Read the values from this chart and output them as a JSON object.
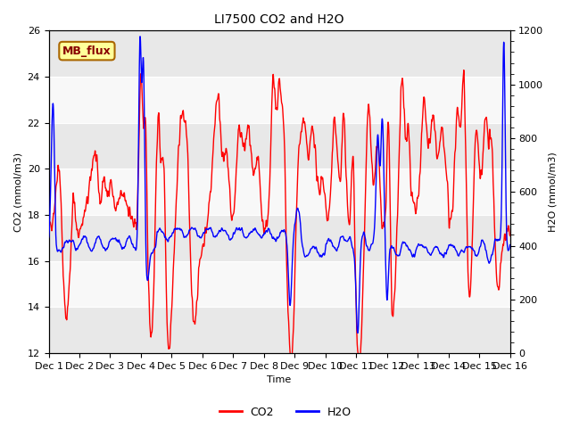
{
  "title": "LI7500 CO2 and H2O",
  "xlabel": "Time",
  "ylabel_left": "CO2 (mmol/m3)",
  "ylabel_right": "H2O (mmol/m3)",
  "ylim_left": [
    12,
    26
  ],
  "ylim_right": [
    0,
    1200
  ],
  "co2_color": "#FF0000",
  "h2o_color": "#0000FF",
  "fig_bg_color": "#FFFFFF",
  "plot_bg_color": "#F0F0F0",
  "band_light": "#F8F8F8",
  "band_dark": "#E8E8E8",
  "mb_flux_label": "MB_flux",
  "mb_flux_bg": "#FFFF99",
  "mb_flux_border": "#AA6600",
  "mb_flux_text_color": "#880000",
  "legend_co2": "CO2",
  "legend_h2o": "H2O",
  "xtick_labels": [
    "Dec 1",
    "Dec 2",
    "Dec 3",
    "Dec 4",
    "Dec 5",
    "Dec 6",
    "Dec 7",
    "Dec 8",
    "Dec 9",
    "Dec 10",
    "Dec 11",
    "Dec 12",
    "Dec 13",
    "Dec 14",
    "Dec 15",
    "Dec 16"
  ],
  "yticks_left": [
    12,
    14,
    16,
    18,
    20,
    22,
    24,
    26
  ],
  "yticks_right": [
    0,
    200,
    400,
    600,
    800,
    1000,
    1200
  ],
  "linewidth": 1.0,
  "title_fontsize": 10,
  "axis_fontsize": 8,
  "tick_fontsize": 8,
  "legend_fontsize": 9
}
